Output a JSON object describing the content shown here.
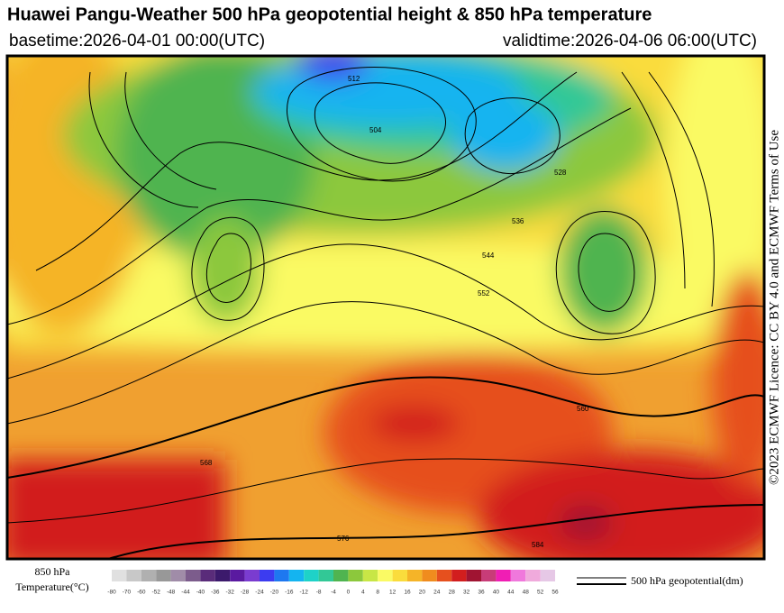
{
  "header": {
    "title": "Huawei Pangu-Weather 500 hPa geopotential height & 850 hPa temperature",
    "basetime": "basetime:2026-04-01 00:00(UTC)",
    "validtime": "validtime:2026-04-06 06:00(UTC)"
  },
  "licence": "©2023 ECMWF Licence: CC BY 4.0 and ECMWF Terms of Use",
  "colorbar": {
    "title": "850 hPa",
    "subtitle": "Temperature(°C)",
    "ticks": [
      -80,
      -70,
      -60,
      -52,
      -48,
      -44,
      -40,
      -36,
      -32,
      -28,
      -24,
      -20,
      -16,
      -12,
      -8,
      -4,
      0,
      4,
      8,
      12,
      16,
      20,
      24,
      28,
      32,
      36,
      40,
      44,
      48,
      52,
      56
    ],
    "colors": [
      "#e0e0e0",
      "#c8c8c8",
      "#b0b0b0",
      "#989898",
      "#a08ca8",
      "#7c5c8c",
      "#5a2c7a",
      "#3c1a6c",
      "#5a1aa0",
      "#7a3cd0",
      "#3c3cf0",
      "#1e78f0",
      "#14b4f0",
      "#1ed2c8",
      "#32c896",
      "#50b450",
      "#8cc83c",
      "#c8e646",
      "#fafa64",
      "#fadc3c",
      "#f5b428",
      "#f08c1e",
      "#e6501e",
      "#d21e1e",
      "#a01432",
      "#c83c78",
      "#f01eb4",
      "#f078dc",
      "#f0aadc",
      "#e6c8e6"
    ]
  },
  "legend": {
    "label": "500 hPa geopotential(dm)"
  },
  "contour_labels": [
    "512",
    "504",
    "528",
    "536",
    "544",
    "552",
    "560",
    "568",
    "576",
    "584"
  ]
}
